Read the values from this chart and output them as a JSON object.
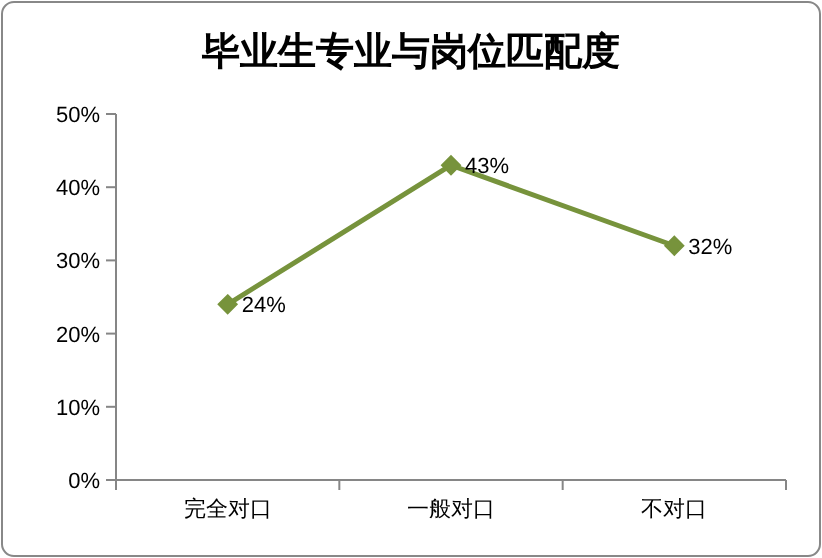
{
  "chart_data": {
    "type": "line",
    "title": "毕业生专业与岗位匹配度",
    "categories": [
      "完全对口",
      "一般对口",
      "不对口"
    ],
    "series": [
      {
        "color": "#77933c",
        "values": [
          24,
          43,
          32
        ],
        "value_labels": [
          "24%",
          "43%",
          "32%"
        ]
      }
    ],
    "ylim": [
      0,
      50
    ],
    "yticks": [
      {
        "value": 0,
        "label": "0%"
      },
      {
        "value": 10,
        "label": "10%"
      },
      {
        "value": 20,
        "label": "20%"
      },
      {
        "value": 30,
        "label": "30%"
      },
      {
        "value": 40,
        "label": "40%"
      },
      {
        "value": 50,
        "label": "50%"
      }
    ],
    "marker": "diamond",
    "line_style": "solid"
  }
}
